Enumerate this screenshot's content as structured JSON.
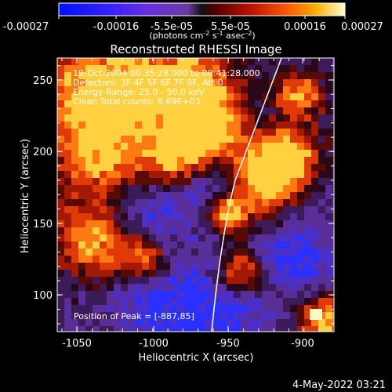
{
  "title": "Reconstructed RHESSI Image",
  "colorbar": {
    "ticks": [
      "-0.00027",
      "-0.00016",
      "-5.5e-05",
      "5.5e-05",
      "0.00016",
      "0.00027"
    ],
    "unit_label": "(photons cm",
    "unit_exp1": "-2",
    "unit_mid": " s",
    "unit_exp2": "-1",
    "unit_mid2": " asec",
    "unit_exp3": "-2",
    "unit_end": ")",
    "range": [
      -0.00027,
      0.00027
    ]
  },
  "info": {
    "line1": "19-Oct-2004 00:35:28.000 to 00:41:28.000",
    "line2": "Detectors: 3F 4F 5F 6F 7F 8F, Att 0",
    "line3": "Energy Range: 25.0 - 50.0 keV",
    "line4": "Clean      Total counts: 6.69E+03"
  },
  "peak_text": "Position of Peak = [-887,85]",
  "axes": {
    "xlabel": "Heliocentric X (arcsec)",
    "ylabel": "Heliocentric Y (arcsec)",
    "x_ticks": [
      "-1050",
      "-1000",
      "-950",
      "-900"
    ],
    "x_tick_values": [
      -1050,
      -1000,
      -950,
      -900
    ],
    "y_ticks": [
      "100",
      "150",
      "200",
      "250"
    ],
    "y_tick_values": [
      100,
      150,
      200,
      250
    ],
    "xlim": [
      -1070,
      -872
    ],
    "ylim": [
      70,
      268
    ]
  },
  "timestamp": "4-May-2022 03:21",
  "colors": {
    "background": "#000000",
    "text": "#ffffff"
  }
}
